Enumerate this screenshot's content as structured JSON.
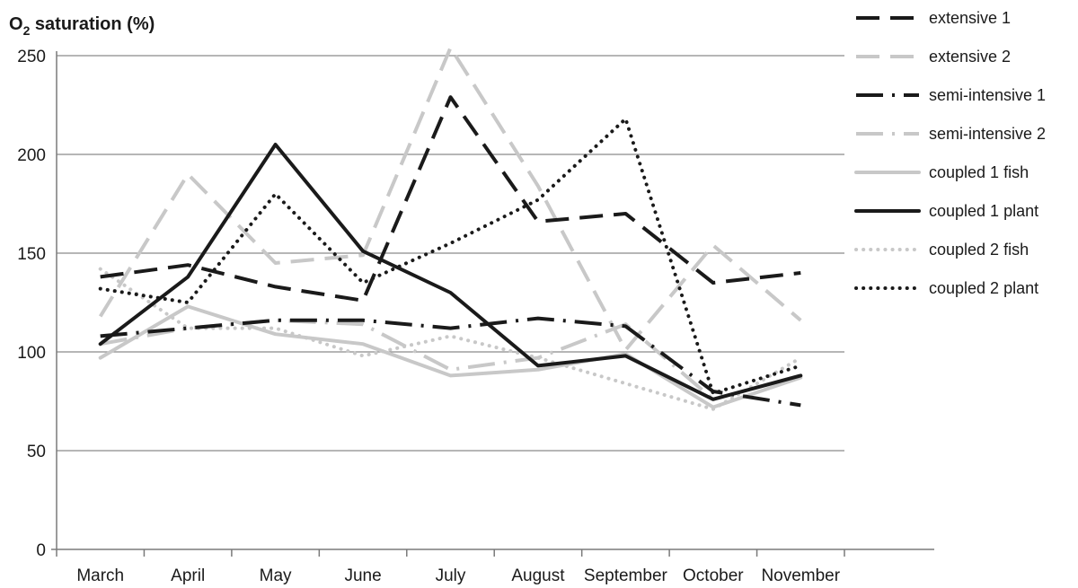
{
  "chart_data": {
    "type": "line",
    "ylabel": {
      "main": "O",
      "sub": "2",
      "rest": " saturation (%)"
    },
    "categories": [
      "March",
      "April",
      "May",
      "June",
      "July",
      "August",
      "September",
      "October",
      "November"
    ],
    "ylim": [
      0,
      250
    ],
    "yticks": [
      "0",
      "50",
      "100",
      "150",
      "200",
      "250"
    ],
    "grid": "horizontal",
    "legend_position": "right",
    "series": [
      {
        "name": "extensive 1",
        "color": "#1a1a1a",
        "style": "dash",
        "values": [
          138,
          144,
          133,
          126,
          229,
          166,
          170,
          135,
          140
        ]
      },
      {
        "name": "extensive 2",
        "color": "#c8c8c8",
        "style": "dash",
        "values": [
          118,
          190,
          145,
          149,
          254,
          184,
          101,
          154,
          116
        ]
      },
      {
        "name": "semi-intensive 1",
        "color": "#1a1a1a",
        "style": "dashdot",
        "values": [
          108,
          112,
          116,
          116,
          112,
          117,
          113,
          80,
          73
        ]
      },
      {
        "name": "semi-intensive 2",
        "color": "#c8c8c8",
        "style": "dashdot",
        "values": [
          104,
          112,
          116,
          114,
          91,
          97,
          114,
          76,
          88
        ]
      },
      {
        "name": "coupled 1 fish",
        "color": "#c8c8c8",
        "style": "solid",
        "values": [
          97,
          123,
          109,
          104,
          88,
          91,
          99,
          72,
          87
        ]
      },
      {
        "name": "coupled 1 plant",
        "color": "#1a1a1a",
        "style": "solid",
        "values": [
          104,
          138,
          205,
          151,
          130,
          93,
          98,
          76,
          88
        ]
      },
      {
        "name": "coupled 2 fish",
        "color": "#c8c8c8",
        "style": "dot",
        "values": [
          142,
          112,
          112,
          98,
          108,
          97,
          84,
          71,
          97
        ]
      },
      {
        "name": "coupled 2 plant",
        "color": "#1a1a1a",
        "style": "dot",
        "values": [
          132,
          125,
          180,
          135,
          155,
          177,
          218,
          79,
          93
        ]
      }
    ]
  }
}
